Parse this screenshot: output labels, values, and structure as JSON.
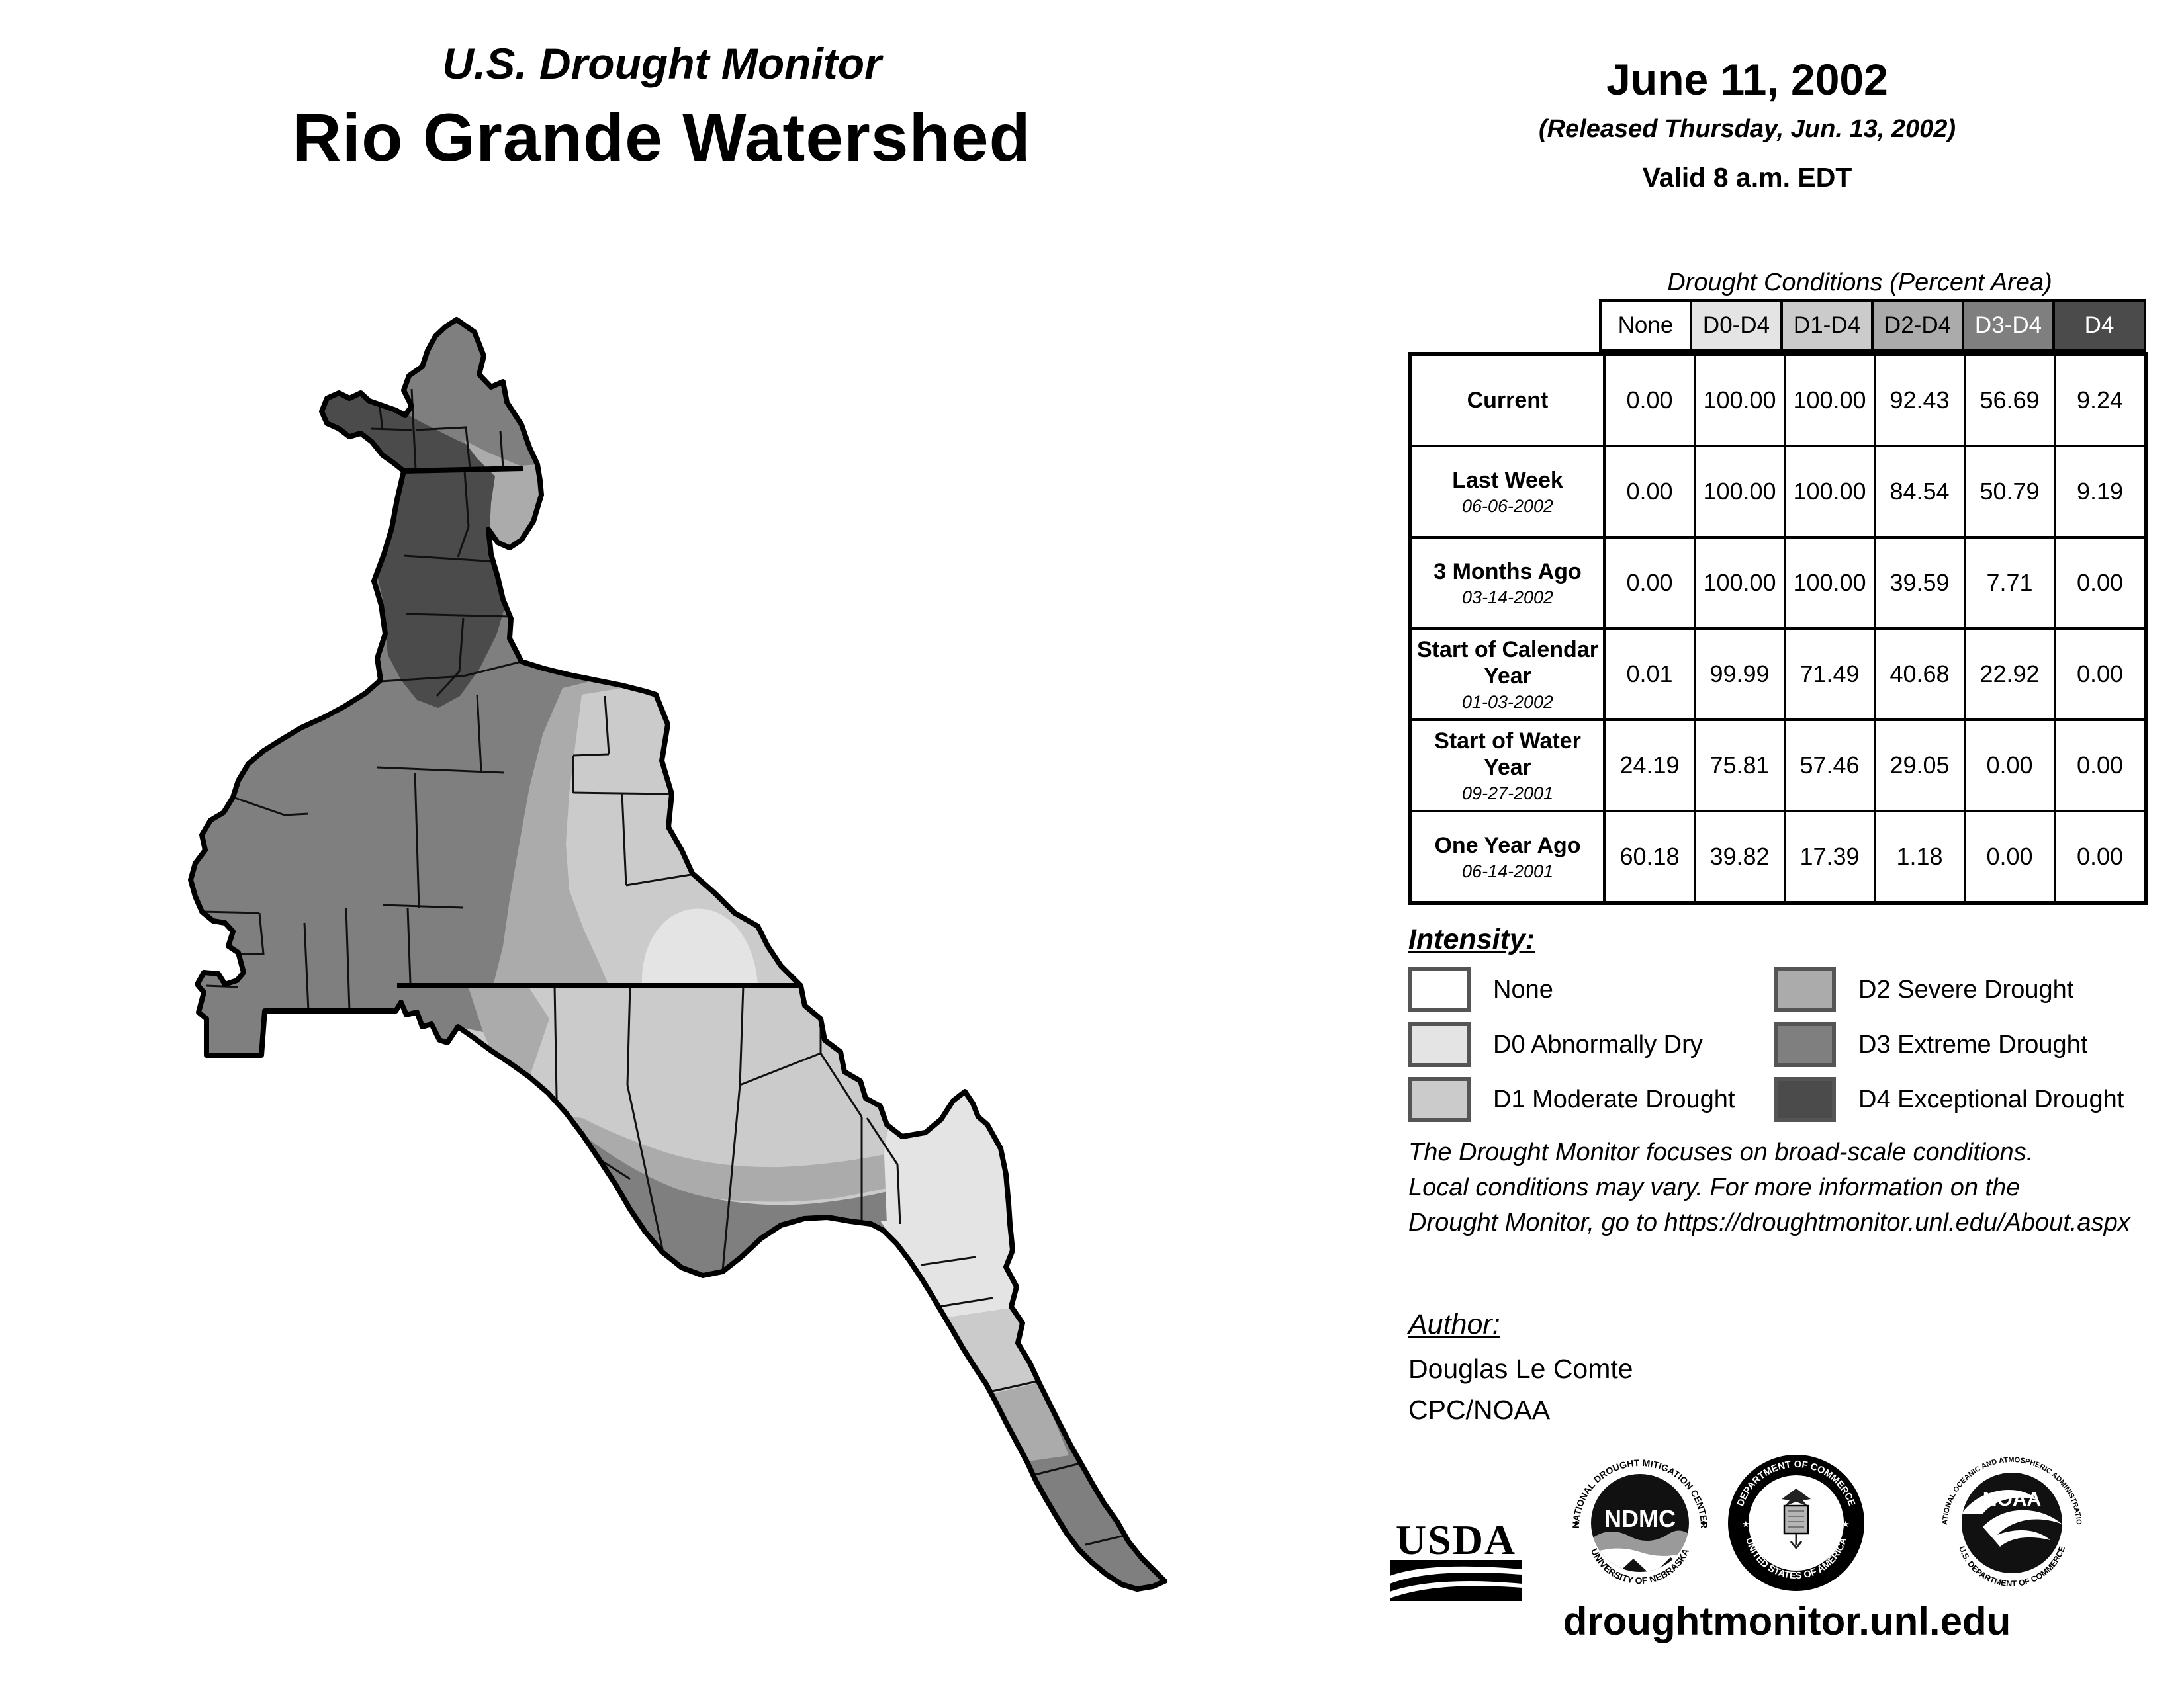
{
  "title": {
    "line1": "U.S. Drought Monitor",
    "line2": "Rio Grande Watershed"
  },
  "date_block": {
    "date": "June 11, 2002",
    "released": "(Released Thursday, Jun. 13, 2002)",
    "valid": "Valid 8 a.m. EDT"
  },
  "table": {
    "title": "Drought Conditions (Percent Area)",
    "columns": [
      {
        "label": "None",
        "bg": "#ffffff",
        "fg": "#000000"
      },
      {
        "label": "D0-D4",
        "bg": "#e4e4e4",
        "fg": "#000000"
      },
      {
        "label": "D1-D4",
        "bg": "#cbcbcb",
        "fg": "#000000"
      },
      {
        "label": "D2-D4",
        "bg": "#ababab",
        "fg": "#000000"
      },
      {
        "label": "D3-D4",
        "bg": "#7f7f7f",
        "fg": "#ffffff"
      },
      {
        "label": "D4",
        "bg": "#4b4b4b",
        "fg": "#ffffff"
      }
    ],
    "rows": [
      {
        "label": "Current",
        "sublabel": "",
        "values": [
          "0.00",
          "100.00",
          "100.00",
          "92.43",
          "56.69",
          "9.24"
        ]
      },
      {
        "label": "Last Week",
        "sublabel": "06-06-2002",
        "values": [
          "0.00",
          "100.00",
          "100.00",
          "84.54",
          "50.79",
          "9.19"
        ]
      },
      {
        "label": "3 Months Ago",
        "sublabel": "03-14-2002",
        "values": [
          "0.00",
          "100.00",
          "100.00",
          "39.59",
          "7.71",
          "0.00"
        ]
      },
      {
        "label": "Start of Calendar Year",
        "sublabel": "01-03-2002",
        "values": [
          "0.01",
          "99.99",
          "71.49",
          "40.68",
          "22.92",
          "0.00"
        ]
      },
      {
        "label": "Start of Water Year",
        "sublabel": "09-27-2001",
        "values": [
          "24.19",
          "75.81",
          "57.46",
          "29.05",
          "0.00",
          "0.00"
        ]
      },
      {
        "label": "One Year Ago",
        "sublabel": "06-14-2001",
        "values": [
          "60.18",
          "39.82",
          "17.39",
          "1.18",
          "0.00",
          "0.00"
        ]
      }
    ]
  },
  "legend": {
    "title": "Intensity:",
    "items": [
      {
        "label": "None",
        "color": "#ffffff"
      },
      {
        "label": "D0 Abnormally Dry",
        "color": "#e4e4e4"
      },
      {
        "label": "D1 Moderate Drought",
        "color": "#cbcbcb"
      },
      {
        "label": "D2 Severe Drought",
        "color": "#ababab"
      },
      {
        "label": "D3 Extreme Drought",
        "color": "#7f7f7f"
      },
      {
        "label": "D4 Exceptional Drought",
        "color": "#4b4b4b"
      }
    ]
  },
  "disclaimer": "The Drought Monitor focuses on broad-scale conditions.\nLocal conditions may vary. For more information on the\nDrought Monitor, go to https://droughtmonitor.unl.edu/About.aspx",
  "author": {
    "heading": "Author:",
    "name": "Douglas Le Comte",
    "org": "CPC/NOAA"
  },
  "logos": {
    "usda": "USDA",
    "ndmc": "NDMC",
    "ndmc_top": "NATIONAL DROUGHT MITIGATION CENTER",
    "ndmc_bottom": "UNIVERSITY OF NEBRASKA",
    "doc_top": "DEPARTMENT OF COMMERCE",
    "doc_bottom": "UNITED STATES OF AMERICA",
    "noaa": "NOAA",
    "noaa_top": "NATIONAL OCEANIC AND ATMOSPHERIC ADMINISTRATION",
    "noaa_bottom": "U.S. DEPARTMENT OF COMMERCE"
  },
  "footer": {
    "url": "droughtmonitor.unl.edu"
  },
  "map": {
    "region": "Rio Grande Watershed",
    "colors": {
      "none": "#ffffff",
      "d0": "#e4e4e4",
      "d1": "#cbcbcb",
      "d2": "#ababab",
      "d3": "#7f7f7f",
      "d4": "#4b4b4b"
    }
  }
}
